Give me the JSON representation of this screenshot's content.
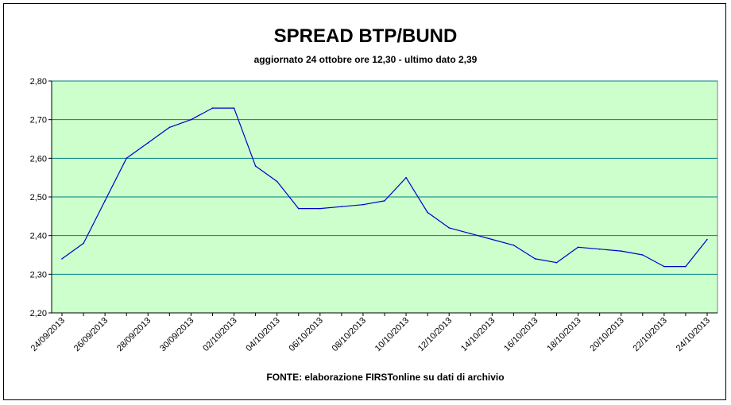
{
  "chart_data": {
    "type": "line",
    "title": "SPREAD BTP/BUND",
    "subtitle": "aggiornato 24 ottobre ore 12,30 - ultimo dato 2,39",
    "source": "FONTE:  elaborazione FIRSTonline su dati di archivio",
    "xlabel": "",
    "ylabel": "",
    "ylim": [
      2.2,
      2.8
    ],
    "y_ticks": [
      "2,20",
      "2,30",
      "2,40",
      "2,50",
      "2,60",
      "2,70",
      "2,80"
    ],
    "x_tick_labels": [
      "24/09/2013",
      "26/09/2013",
      "28/09/2013",
      "30/09/2013",
      "02/10/2013",
      "04/10/2013",
      "06/10/2013",
      "08/10/2013",
      "10/10/2013",
      "12/10/2013",
      "14/10/2013",
      "16/10/2013",
      "18/10/2013",
      "20/10/2013",
      "22/10/2013",
      "24/10/2013"
    ],
    "x_start": "2013-09-24",
    "x_end": "2013-10-24",
    "grid": true,
    "series": [
      {
        "color": "#0000cc",
        "points": [
          [
            "2013-09-24",
            2.34
          ],
          [
            "2013-09-25",
            2.38
          ],
          [
            "2013-09-26",
            2.49
          ],
          [
            "2013-09-27",
            2.6
          ],
          [
            "2013-09-28",
            2.64
          ],
          [
            "2013-09-29",
            2.68
          ],
          [
            "2013-09-30",
            2.7
          ],
          [
            "2013-10-01",
            2.73
          ],
          [
            "2013-10-02",
            2.73
          ],
          [
            "2013-10-03",
            2.58
          ],
          [
            "2013-10-04",
            2.54
          ],
          [
            "2013-10-05",
            2.47
          ],
          [
            "2013-10-06",
            2.47
          ],
          [
            "2013-10-07",
            2.475
          ],
          [
            "2013-10-08",
            2.48
          ],
          [
            "2013-10-09",
            2.49
          ],
          [
            "2013-10-10",
            2.55
          ],
          [
            "2013-10-11",
            2.46
          ],
          [
            "2013-10-12",
            2.42
          ],
          [
            "2013-10-13",
            2.405
          ],
          [
            "2013-10-14",
            2.39
          ],
          [
            "2013-10-15",
            2.375
          ],
          [
            "2013-10-16",
            2.34
          ],
          [
            "2013-10-17",
            2.33
          ],
          [
            "2013-10-18",
            2.37
          ],
          [
            "2013-10-19",
            2.365
          ],
          [
            "2013-10-20",
            2.36
          ],
          [
            "2013-10-21",
            2.35
          ],
          [
            "2013-10-22",
            2.32
          ],
          [
            "2013-10-23",
            2.32
          ],
          [
            "2013-10-24",
            2.39
          ]
        ]
      }
    ]
  },
  "colors": {
    "plot_background": "#ccffcc",
    "gridline": "#008080",
    "line": "#0000cc"
  }
}
